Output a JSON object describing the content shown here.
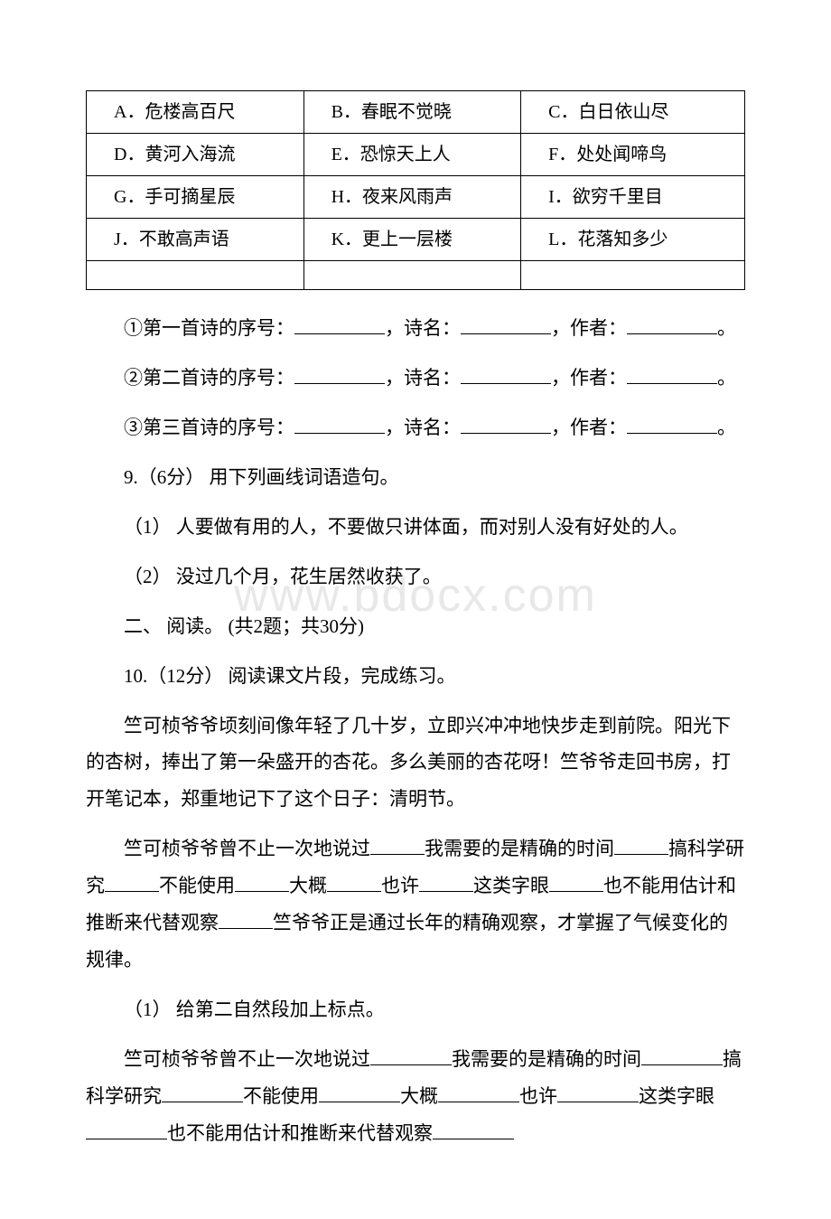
{
  "table": {
    "rows": [
      [
        "A．危楼高百尺",
        "B．春眠不觉晓",
        "C．白日依山尽"
      ],
      [
        "D．黄河入海流",
        "E．恐惊天上人",
        "F．处处闻啼鸟"
      ],
      [
        "G．手可摘星辰",
        "H．夜来风雨声",
        "I．欲穷千里目"
      ],
      [
        "J．不敢高声语",
        "K．更上一层楼",
        "L．花落知多少"
      ],
      [
        "",
        "",
        ""
      ]
    ]
  },
  "q_fill": {
    "item1_pre": "①第一首诗的序号：",
    "item1_mid1": "，诗名：",
    "item1_mid2": "，作者：",
    "item1_end": "。",
    "item2_pre": "②第二首诗的序号：",
    "item2_mid1": "，诗名：",
    "item2_mid2": "，作者：",
    "item2_end": "。",
    "item3_pre": "③第三首诗的序号：",
    "item3_mid1": "，诗名：",
    "item3_mid2": "，作者：",
    "item3_end": "。"
  },
  "q9": {
    "header": "9.（6分） 用下列画线词语造句。",
    "line1": "（1） 人要做有用的人，不要做只讲体面，而对别人没有好处的人。",
    "line2": "（2） 没过几个月，花生居然收获了。"
  },
  "section2": "二、 阅读。 (共2题；共30分)",
  "q10": {
    "header": "10.（12分） 阅读课文片段，完成练习。",
    "para1": "竺可桢爷爷顷刻间像年轻了几十岁，立即兴冲冲地快步走到前院。阳光下的杏树，捧出了第一朵盛开的杏花。多么美丽的杏花呀！竺爷爷走回书房，打开笔记本，郑重地记下了这个日子：清明节。",
    "p2_seg1": "竺可桢爷爷曾不止一次地说过",
    "p2_seg2": "我需要的是精确的时间",
    "p2_seg3": "搞科学研究",
    "p2_seg4": "不能使用",
    "p2_seg5": "大概",
    "p2_seg6": "也许",
    "p2_seg7": "这类字眼",
    "p2_seg8": "也不能用估计和推断来代替观察",
    "p2_seg9": "竺爷爷正是通过长年的精确观察，才掌握了气候变化的规律。",
    "sub1": "（1） 给第二自然段加上标点。",
    "ans_seg1": "竺可桢爷爷曾不止一次地说过",
    "ans_seg2": "我需要的是精确的时间",
    "ans_seg3": "搞科学研究",
    "ans_seg4": "不能使用",
    "ans_seg5": "大概",
    "ans_seg6": "也许",
    "ans_seg7": "这类字眼",
    "ans_seg8": "也不能用估计和推断来代替观察"
  },
  "watermark_text": "www.bdocx.com"
}
